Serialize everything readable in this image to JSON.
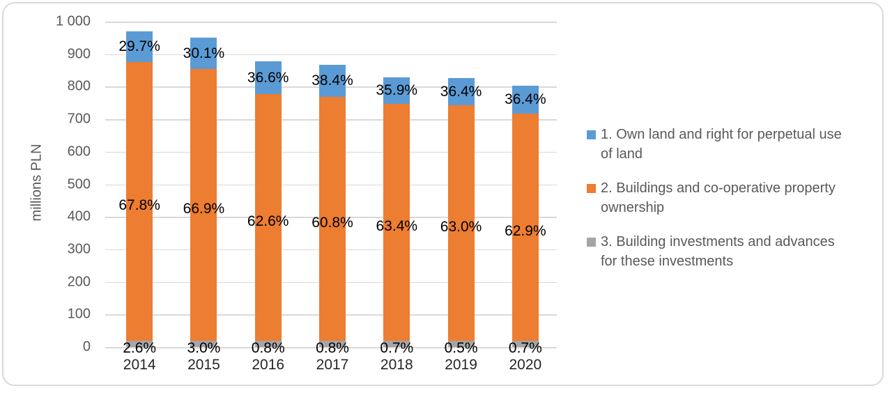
{
  "frame": {
    "border_color": "#d9d9d9",
    "background": "#ffffff"
  },
  "chart_data": {
    "type": "bar",
    "stacked": true,
    "title": "",
    "xlabel": "",
    "ylabel": "millions PLN",
    "ylim": [
      0,
      1000
    ],
    "ytick_step": 100,
    "ytick_labels": [
      "0",
      "100",
      "200",
      "300",
      "400",
      "500",
      "600",
      "700",
      "800",
      "900",
      "1 000"
    ],
    "grid": "horizontal",
    "legend_position": "right",
    "categories": [
      "2014",
      "2015",
      "2016",
      "2017",
      "2018",
      "2019",
      "2020"
    ],
    "totals_millions_pln_estimated": [
      970,
      950,
      878,
      868,
      829,
      827,
      802
    ],
    "series": [
      {
        "name": "1. Own land and right for perpetual use of land",
        "color": "#5B9BD5",
        "values_millions_pln_estimated": [
          95,
          95,
          101,
          100,
          82,
          85,
          84
        ],
        "data_labels": [
          "29.7%",
          "30.1%",
          "36.6%",
          "38.4%",
          "35.9%",
          "36.4%",
          "36.4%"
        ]
      },
      {
        "name": "2. Buildings and co-operative property ownership",
        "color": "#ED7D31",
        "values_millions_pln_estimated": [
          855,
          835,
          757,
          748,
          727,
          722,
          698
        ],
        "data_labels": [
          "67.8%",
          "66.9%",
          "62.6%",
          "60.8%",
          "63.4%",
          "63.0%",
          "62.9%"
        ]
      },
      {
        "name": "3. Building investments and advances for these investments",
        "color": "#A5A5A5",
        "values_millions_pln_estimated": [
          20,
          20,
          20,
          20,
          20,
          20,
          20
        ],
        "data_labels": [
          "2.6%",
          "3.0%",
          "0.8%",
          "0.8%",
          "0.7%",
          "0.5%",
          "0.7%"
        ]
      }
    ]
  },
  "legend": {
    "items": [
      {
        "color": "#5B9BD5",
        "lines": [
          "1. Own land and right for perpetual use",
          "of land"
        ]
      },
      {
        "color": "#ED7D31",
        "lines": [
          "2. Buildings and co-operative property",
          "ownership"
        ]
      },
      {
        "color": "#A5A5A5",
        "lines": [
          "3. Building investments and advances",
          "for these investments"
        ]
      }
    ]
  }
}
